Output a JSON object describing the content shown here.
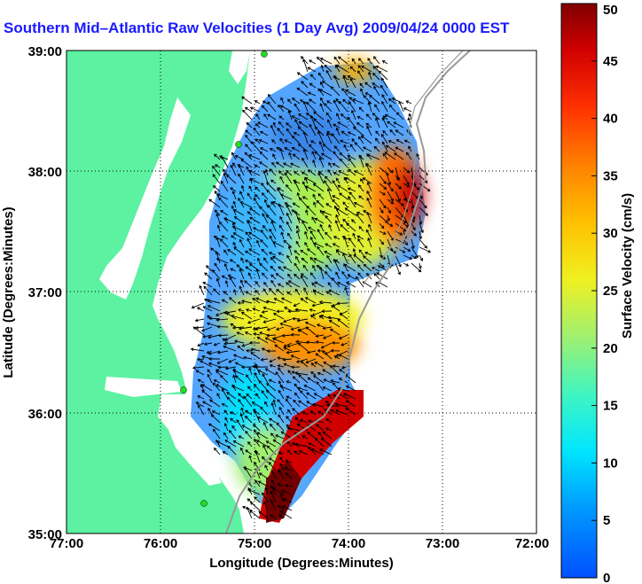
{
  "title": "Southern Mid–Atlantic Raw Velocities (1 Day Avg) 2009/04/24 0000 EST",
  "map": {
    "xlabel": "Longitude (Degrees:Minutes)",
    "ylabel": "Latitude (Degrees:Minutes)",
    "lon_ticks": [
      "77:00",
      "76:00",
      "75:00",
      "74:00",
      "73:00",
      "72:00"
    ],
    "lat_ticks": [
      "39:00",
      "38:00",
      "37:00",
      "36:00",
      "35:00"
    ],
    "lon_range": [
      -77,
      -72
    ],
    "lat_range": [
      35,
      39
    ]
  },
  "colorbar": {
    "label": "Surface Velocity (cm/s)",
    "ticks": [
      "0",
      "5",
      "10",
      "15",
      "20",
      "25",
      "30",
      "35",
      "40",
      "45",
      "50"
    ],
    "range": [
      0,
      50
    ]
  },
  "colors": {
    "land": "#5cf2a2",
    "title": "#1a1aff",
    "station": "#22dd22"
  }
}
